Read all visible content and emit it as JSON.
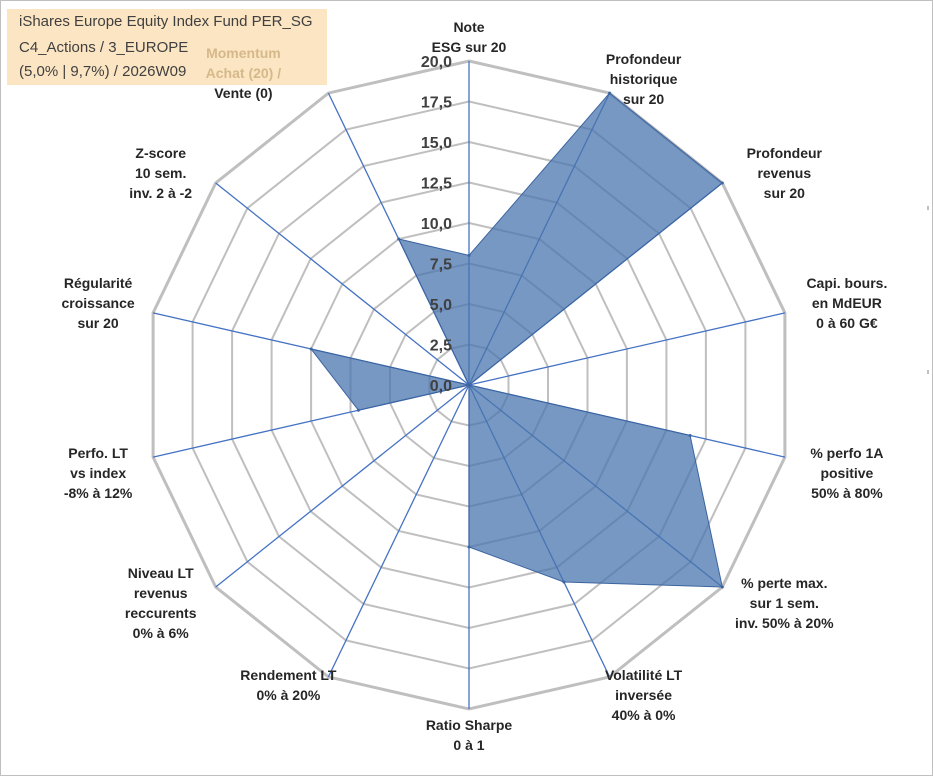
{
  "header": {
    "line1": "iShares Europe Equity Index Fund PER_SG",
    "line2": "C4_Actions / 3_EUROPE",
    "line3": "(5,0% | 9,7%) / 2026W09"
  },
  "chart_data": {
    "type": "radar",
    "title": "iShares Europe Equity Index Fund PER_SG",
    "rmin": 0,
    "rmax": 20,
    "tick_step": 2.5,
    "tick_labels": [
      "0,0",
      "2,5",
      "5,0",
      "7,5",
      "10,0",
      "12,5",
      "15,0",
      "17,5",
      "20,0"
    ],
    "colors": {
      "fill": "#4a76ad",
      "grid": "#bfbfbf",
      "axis": "#4472c4",
      "title_bg": "#fbe5c3"
    },
    "axes": [
      {
        "label": [
          "Note",
          "ESG sur 20"
        ],
        "value": 8
      },
      {
        "label": [
          "Profondeur",
          "historique",
          "sur 20"
        ],
        "value": 20
      },
      {
        "label": [
          "Profondeur",
          "revenus",
          "sur 20"
        ],
        "value": 20
      },
      {
        "label": [
          "Capi. bours.",
          "en MdEUR",
          "0 à 60 G€"
        ],
        "value": 0
      },
      {
        "label": [
          "% perfo 1A",
          "positive",
          "50% à 80%"
        ],
        "value": 14
      },
      {
        "label": [
          "% perte max.",
          "sur 1 sem.",
          "inv. 50% à 20%"
        ],
        "value": 20
      },
      {
        "label": [
          "Volatilité LT",
          "inversée",
          "40% à 0%"
        ],
        "value": 13.5
      },
      {
        "label": [
          "Ratio Sharpe",
          "0 à 1"
        ],
        "value": 10
      },
      {
        "label": [
          "Rendement LT",
          "0% à 20%"
        ],
        "value": 0
      },
      {
        "label": [
          "Niveau LT",
          "revenus",
          "reccurents",
          "0% à 6%"
        ],
        "value": 0
      },
      {
        "label": [
          "Perfo. LT",
          "vs index",
          "-8% à 12%"
        ],
        "value": 7
      },
      {
        "label": [
          "Régularité",
          "croissance",
          "sur 20"
        ],
        "value": 10
      },
      {
        "label": [
          "Z-score",
          "10 sem.",
          "inv. 2 à -2"
        ],
        "value": 0
      },
      {
        "label": [
          "Momentum",
          "Achat (20) /",
          "Vente (0)"
        ],
        "value": 10
      }
    ]
  }
}
